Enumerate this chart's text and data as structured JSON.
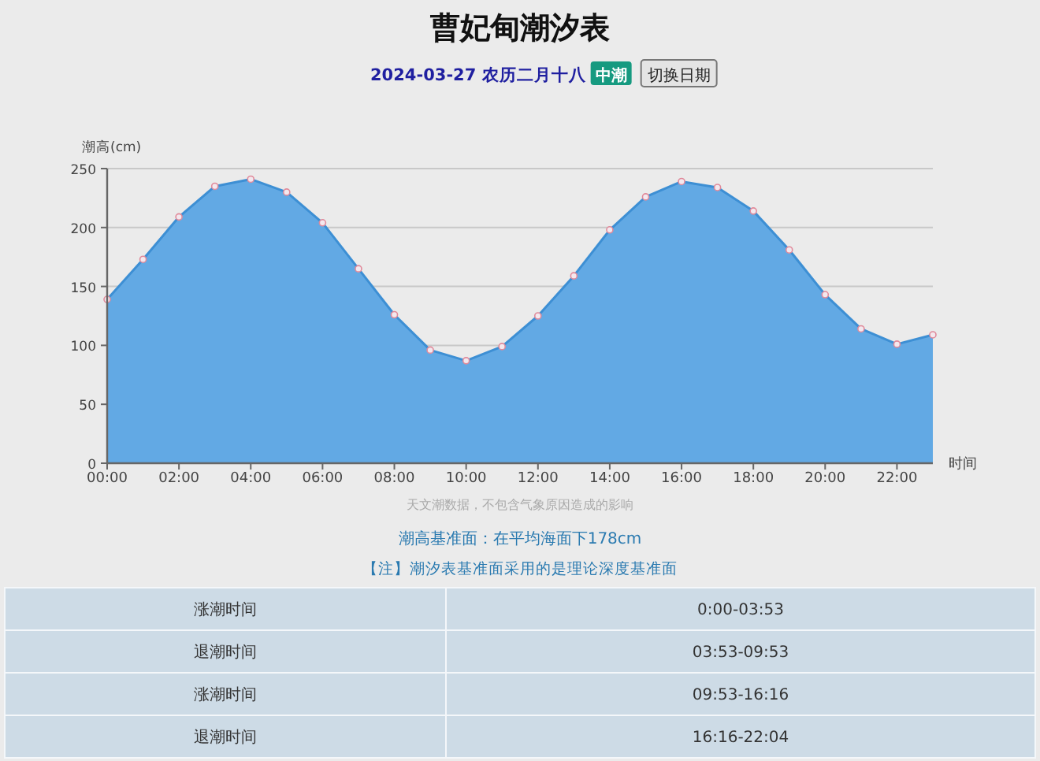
{
  "chart_data": {
    "type": "area",
    "title": "曹妃甸潮汐表",
    "subtitle": "2024-03-27 农历二月十八",
    "xlabel": "时间",
    "ylabel": "潮高(cm)",
    "x": [
      0,
      1,
      2,
      3,
      4,
      5,
      6,
      7,
      8,
      9,
      10,
      11,
      12,
      13,
      14,
      15,
      16,
      17,
      18,
      19,
      20,
      21,
      22,
      23
    ],
    "series": [
      {
        "color": "#62a9e4",
        "values": [
          139,
          173,
          209,
          235,
          241,
          230,
          204,
          165,
          126,
          96,
          87,
          99,
          125,
          159,
          198,
          226,
          239,
          234,
          214,
          181,
          143,
          114,
          101,
          109
        ]
      }
    ],
    "xlim": [
      0,
      23
    ],
    "xticks": [
      {
        "value": 0,
        "label": "00:00"
      },
      {
        "value": 2,
        "label": "02:00"
      },
      {
        "value": 4,
        "label": "04:00"
      },
      {
        "value": 6,
        "label": "06:00"
      },
      {
        "value": 8,
        "label": "08:00"
      },
      {
        "value": 10,
        "label": "10:00"
      },
      {
        "value": 12,
        "label": "12:00"
      },
      {
        "value": 14,
        "label": "14:00"
      },
      {
        "value": 16,
        "label": "16:00"
      },
      {
        "value": 18,
        "label": "18:00"
      },
      {
        "value": 20,
        "label": "20:00"
      },
      {
        "value": 22,
        "label": "22:00"
      }
    ],
    "ylim": [
      0,
      250
    ],
    "yticks": [
      0,
      50,
      100,
      150,
      200,
      250
    ],
    "grid": "y",
    "marker": "circle",
    "line_style": "solid",
    "annotations": [
      "中潮",
      "切换日期",
      "天文潮数据，不包含气象原因造成的影响",
      "潮高基准面：在平均海面下178cm",
      "【注】潮汐表基准面采用的是理论深度基准面",
      "涨潮时间",
      "0:00-03:53",
      "退潮时间",
      "03:53-09:53",
      "涨潮时间",
      "09:53-16:16",
      "退潮时间",
      "16:16-22:04"
    ]
  }
}
